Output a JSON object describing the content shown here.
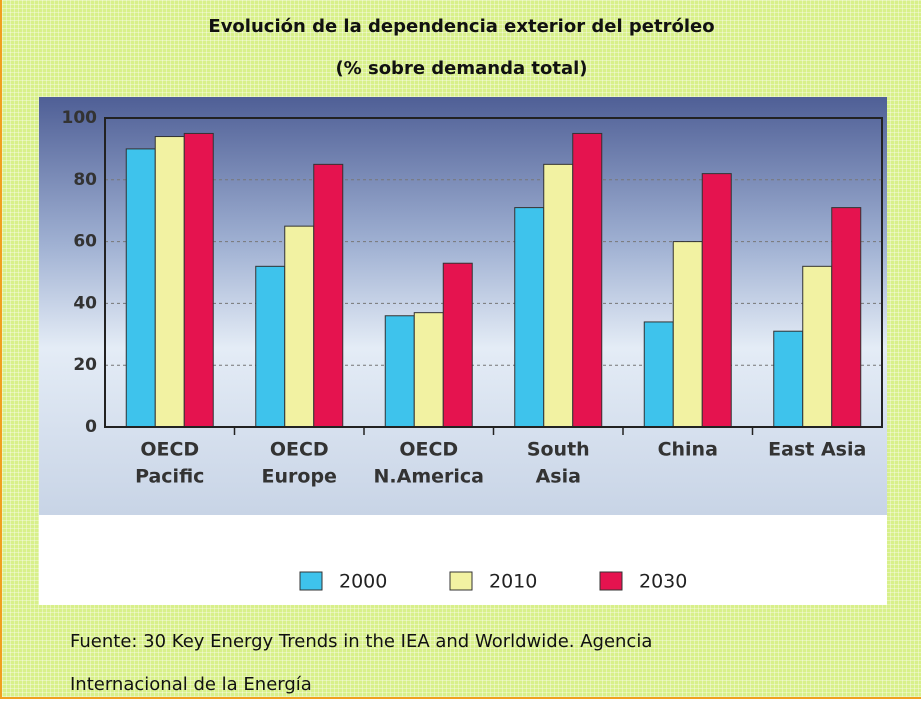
{
  "chart_data": {
    "type": "bar",
    "title": "Evolución de la dependencia exterior del petróleo",
    "subtitle": "(% sobre demanda total)",
    "categories": [
      [
        "OECD",
        "Pacific"
      ],
      [
        "OECD",
        "Europe"
      ],
      [
        "OECD",
        "N.America"
      ],
      [
        "South",
        "Asia"
      ],
      [
        "China"
      ],
      [
        "East Asia"
      ]
    ],
    "series": [
      {
        "name": "2000",
        "color": "#3ec3ec",
        "values": [
          90,
          52,
          36,
          71,
          34,
          31
        ]
      },
      {
        "name": "2010",
        "color": "#f2f2a2",
        "values": [
          94,
          65,
          37,
          85,
          60,
          52
        ]
      },
      {
        "name": "2030",
        "color": "#e5134f",
        "values": [
          95,
          85,
          53,
          95,
          82,
          71
        ]
      }
    ],
    "ylim": [
      0,
      100
    ],
    "yticks": [
      0,
      20,
      40,
      60,
      80,
      100
    ],
    "grid": true
  },
  "source": "Fuente: 30 Key Energy Trends in the IEA and Worldwide. Agencia Internacional de la Energía"
}
